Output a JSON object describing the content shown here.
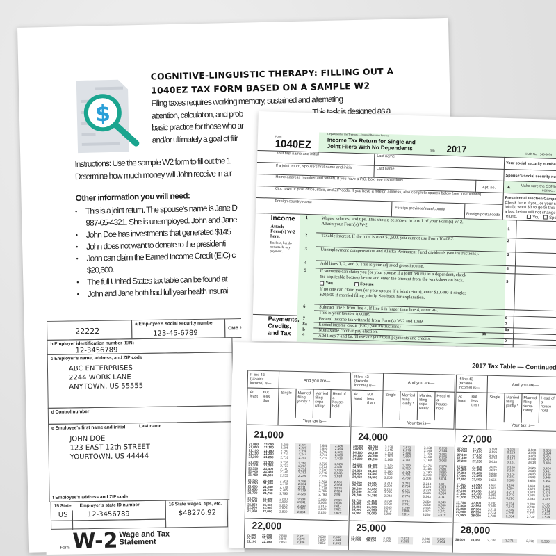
{
  "worksheet": {
    "title_line1": "COGNITIVE-LINGUISTIC THERAPY: FILLING OUT A",
    "title_line2": "1040EZ TAX FORM BASED ON A SAMPLE W2",
    "intro": [
      "Filing taxes requires working memory, sustained and alternating",
      "attention, calculation, and prob",
      "basic practice for those who ar",
      "and/or ultimately a goal of filir"
    ],
    "intro_tail": "This task is designed as a",
    "instructions": [
      "Instructions: Use the sample W2 form to fill out the 1",
      "Determine how much money will John receive in a r"
    ],
    "other_heading": "Other information you will need:",
    "bullets": [
      "This is a joint return. The spouse’s name is Jane D",
      "987-65-4321. She is unemployed. John and Jane",
      "John Doe has investments that generated $145",
      "John does not want to donate to the presidenti",
      "John can claim the Earned Income Credit (EIC) c",
      "$20,600.",
      "The full United States tax table can be found at",
      "John and Jane both had full year health insurai"
    ],
    "icon": "document-magnifier-dollar-icon",
    "icon_colors": {
      "teal": "#1aa58f",
      "blue": "#2a9fd8",
      "paper": "#dde1e6"
    }
  },
  "w2": {
    "code": "22222",
    "ssn_label": "a Employee’s social security number",
    "ssn": "123-45-6789",
    "omb": "OMB No.",
    "ein_label": "b Employer identification number (EIN)",
    "ein": "12-3456789",
    "employer_label": "c Employer’s name, address, and ZIP code",
    "employer": [
      "ABC ENTERPRISES",
      "2244 WORK LANE",
      "ANYTOWN, US  55555"
    ],
    "control_label": "d Control number",
    "employee_label": "e Employee’s first name and initial",
    "last_name_label": "Last name",
    "employee": [
      "JOHN DOE",
      "123 EAST 12th STREET",
      "YOURTOWN, US 44444"
    ],
    "address_label": "f Employee’s address and ZIP code",
    "state_label": "15 State",
    "state_id_label": "Employer’s state ID number",
    "state_wages_label": "16 State wages, tips, etc.",
    "state": "US",
    "state_id": "12-3456789",
    "state_wages": "$48276.92",
    "form_word": "Form",
    "form_name": "W-2",
    "form_title": [
      "Wage and Tax",
      "Statement"
    ]
  },
  "f1040ez": {
    "form_word": "Form",
    "form_name": "1040EZ",
    "dept": "Department of the Treasury—Internal Revenue Service",
    "title1": "Income Tax Return for Single and",
    "title2": "Joint Filers With No Dependents",
    "code": "(99)",
    "year": "2017",
    "omb": "OMB No. 1545-0074",
    "first_name": "Your first name and initial",
    "last_name": "Last name",
    "spouse_first": "If a joint return, spouse’s first name and initial",
    "spouse_last": "Last name",
    "address": "Home address (number and street). If you have a P.O. box, see instructions.",
    "apt": "Apt. no.",
    "city": "City, town or post office, state, and ZIP code. If you have a foreign address, also complete spaces below (see instructions).",
    "foreign_country": "Foreign country name",
    "foreign_province": "Foreign province/state/county",
    "foreign_postal": "Foreign postal code",
    "ssn": "Your social security number",
    "spouse_ssn": "Spouse’s social security number",
    "ssn_note": "Make sure the SSN(s) above are correct.",
    "pec_title": "Presidential Election Campaign",
    "pec_text": [
      "Check here if you, or your spouse if filing",
      "jointly, want $3 to go to this fund. Checking",
      "a box below will not change your tax or",
      "refund."
    ],
    "you": "You",
    "spouse": "Spouse",
    "income_heading": "Income",
    "attach": [
      "Attach",
      "Form(s) W-2",
      "here."
    ],
    "enclose": [
      "Enclose, but do",
      "not attach, any",
      "payment."
    ],
    "payments_heading": [
      "Payments,",
      "Credits,",
      "and Tax"
    ],
    "lines": [
      {
        "num": "1",
        "text": [
          "Wages, salaries, and tips. This should be shown in box 1 of your Form(s) W-2.",
          "Attach your Form(s) W-2."
        ],
        "box": "1"
      },
      {
        "num": "2",
        "text": [
          "Taxable interest. If the total is over $1,500, you cannot use Form 1040EZ."
        ],
        "box": "2"
      },
      {
        "num": "3",
        "text": [
          "Unemployment compensation and Alaska Permanent Fund dividends (see instructions)."
        ],
        "box": "3"
      },
      {
        "num": "4",
        "text": [
          "Add lines 1, 2, and 3. This is your adjusted gross income."
        ],
        "box": "4"
      },
      {
        "num": "5",
        "text": [
          "If someone can claim you (or your spouse if a joint return) as a dependent, check",
          "the applicable box(es) below and enter the amount from the worksheet on back."
        ],
        "box": "5"
      },
      {
        "num": "6",
        "text": [
          "Subtract line 5 from line 4. If line 5 is larger than line 4, enter -0-.",
          "This is your taxable income."
        ],
        "box": "6"
      },
      {
        "num": "7",
        "text": [
          "Federal income tax withheld from Form(s) W-2 and 1099."
        ],
        "box": "7"
      },
      {
        "num": "8a",
        "text": [
          "Earned income credit (EIC) (see instructions)"
        ],
        "box": "8a"
      },
      {
        "num": "b",
        "text": [
          "Nontaxable combat pay election."
        ],
        "box": "8b"
      },
      {
        "num": "9",
        "text": [
          "Add lines 7 and 8a. These are your total payments and credits."
        ],
        "box": "9"
      }
    ],
    "line5_no_one": [
      "If no one can claim you (or your spouse if a joint return), enter $10,400 if single;",
      "$20,800 if married filing jointly. See back for explanation."
    ],
    "green": "#dff5e0"
  },
  "tax_table": {
    "title": "2017 Tax Table — Continued",
    "header": {
      "if_line": [
        "If line 43",
        "(taxable",
        "income) is—"
      ],
      "and_you_are": "And you are—",
      "at_least": "At least",
      "but_less": [
        "But",
        "less",
        "than"
      ],
      "single": "Single",
      "mfj": [
        "Married",
        "filing",
        "jointly *"
      ],
      "mfs": [
        "Married",
        "filing",
        "sepa-",
        "rately"
      ],
      "hoh": [
        "Head of",
        "a",
        "house-",
        "hold"
      ],
      "your_tax": "Your tax is—"
    },
    "columns": [
      {
        "blocks": [
          {
            "heading": "21,000",
            "rows": [
              [
                "21,000",
                "21,050",
                "2,688",
                "2,221",
                "2,688",
                "2,486"
              ],
              [
                "21,050",
                "21,100",
                "2,695",
                "2,229",
                "2,695",
                "2,494"
              ],
              [
                "21,100",
                "21,150",
                "2,703",
                "2,236",
                "2,703",
                "2,501"
              ],
              [
                "21,150",
                "21,200",
                "2,710",
                "2,244",
                "2,710",
                "2,509"
              ],
              [
                "21,200",
                "21,250",
                "2,718",
                "2,251",
                "2,718",
                "2,516"
              ],
              [
                "21,250",
                "21,300",
                "2,725",
                "2,259",
                "2,725",
                "2,524"
              ],
              [
                "21,300",
                "21,350",
                "2,733",
                "2,266",
                "2,733",
                "2,531"
              ],
              [
                "21,350",
                "21,400",
                "2,740",
                "2,274",
                "2,740",
                "2,539"
              ],
              [
                "21,400",
                "21,450",
                "2,748",
                "2,281",
                "2,748",
                "2,546"
              ],
              [
                "21,450",
                "21,500",
                "2,755",
                "2,289",
                "2,755",
                "2,554"
              ],
              [
                "21,500",
                "21,550",
                "2,763",
                "2,296",
                "2,763",
                "2,561"
              ],
              [
                "21,550",
                "21,600",
                "2,770",
                "2,304",
                "2,770",
                "2,569"
              ],
              [
                "21,600",
                "21,650",
                "2,778",
                "2,311",
                "2,778",
                "2,576"
              ],
              [
                "21,650",
                "21,700",
                "2,785",
                "2,319",
                "2,785",
                "2,584"
              ],
              [
                "21,700",
                "21,750",
                "2,793",
                "2,326",
                "2,793",
                "2,591"
              ],
              [
                "21,750",
                "21,800",
                "2,800",
                "2,334",
                "2,800",
                "2,599"
              ],
              [
                "21,800",
                "21,850",
                "2,808",
                "2,341",
                "2,808",
                "2,606"
              ],
              [
                "21,850",
                "21,900",
                "2,815",
                "2,349",
                "2,815",
                "2,614"
              ],
              [
                "21,900",
                "21,950",
                "2,823",
                "2,356",
                "2,823",
                "2,621"
              ],
              [
                "21,950",
                "22,000",
                "2,830",
                "2,364",
                "2,830",
                "2,629"
              ]
            ]
          },
          {
            "heading": "22,000",
            "rows": [
              [
                "22,000",
                "22,050",
                "2,838",
                "2,371",
                "2,838",
                "2,636"
              ],
              [
                "22,050",
                "22,100",
                "2,845",
                "2,379",
                "2,845",
                "2,644"
              ],
              [
                "22,100",
                "22,150",
                "2,853",
                "2,386",
                "2,853",
                "2,651"
              ]
            ]
          }
        ]
      },
      {
        "blocks": [
          {
            "heading": "24,000",
            "rows": [
              [
                "24,000",
                "24,050",
                "3,138",
                "2,671",
                "3,138",
                "2,936"
              ],
              [
                "24,050",
                "24,100",
                "3,145",
                "2,679",
                "3,145",
                "2,944"
              ],
              [
                "24,100",
                "24,150",
                "3,153",
                "2,686",
                "3,153",
                "2,951"
              ],
              [
                "24,150",
                "24,200",
                "3,160",
                "2,694",
                "3,160",
                "2,959"
              ],
              [
                "24,200",
                "24,250",
                "3,168",
                "2,701",
                "3,168",
                "2,966"
              ],
              [
                "24,250",
                "24,300",
                "3,175",
                "2,709",
                "3,175",
                "2,974"
              ],
              [
                "24,300",
                "24,350",
                "3,183",
                "2,716",
                "3,183",
                "2,981"
              ],
              [
                "24,350",
                "24,400",
                "3,190",
                "2,724",
                "3,190",
                "2,989"
              ],
              [
                "24,400",
                "24,450",
                "3,198",
                "2,731",
                "3,198",
                "2,996"
              ],
              [
                "24,450",
                "24,500",
                "3,205",
                "2,739",
                "3,205",
                "3,004"
              ],
              [
                "24,500",
                "24,550",
                "3,213",
                "2,746",
                "3,213",
                "3,011"
              ],
              [
                "24,550",
                "24,600",
                "3,220",
                "2,754",
                "3,220",
                "3,019"
              ],
              [
                "24,600",
                "24,650",
                "3,228",
                "2,761",
                "3,228",
                "3,026"
              ],
              [
                "24,650",
                "24,700",
                "3,235",
                "2,769",
                "3,235",
                "3,034"
              ],
              [
                "24,700",
                "24,750",
                "3,243",
                "2,776",
                "3,243",
                "3,041"
              ],
              [
                "24,750",
                "24,800",
                "3,250",
                "2,784",
                "3,250",
                "3,049"
              ],
              [
                "24,800",
                "24,850",
                "3,258",
                "2,791",
                "3,258",
                "3,056"
              ],
              [
                "24,850",
                "24,900",
                "3,265",
                "2,799",
                "3,265",
                "3,064"
              ],
              [
                "24,900",
                "24,950",
                "3,273",
                "2,806",
                "3,273",
                "3,071"
              ],
              [
                "24,950",
                "25,000",
                "3,280",
                "2,814",
                "3,280",
                "3,079"
              ]
            ]
          },
          {
            "heading": "25,000",
            "rows": [
              [
                "25,000",
                "25,050",
                "3,288",
                "2,821",
                "3,288",
                "3,086"
              ],
              [
                "25,050",
                "25,100",
                "3,295",
                "2,829",
                "3,295",
                "3,094"
              ]
            ]
          }
        ]
      },
      {
        "blocks": [
          {
            "heading": "27,000",
            "rows": [
              [
                "27,000",
                "27,050",
                "3,588",
                "3,121",
                "3,588",
                "3,386"
              ],
              [
                "27,050",
                "27,100",
                "3,595",
                "3,129",
                "3,595",
                "3,394"
              ],
              [
                "27,100",
                "27,150",
                "3,603",
                "3,136",
                "3,603",
                "3,401"
              ],
              [
                "27,150",
                "27,200",
                "3,610",
                "3,144",
                "3,610",
                "3,409"
              ],
              [
                "27,200",
                "27,250",
                "3,618",
                "3,151",
                "3,618",
                "3,416"
              ],
              [
                "27,250",
                "27,300",
                "3,625",
                "3,159",
                "3,625",
                "3,424"
              ],
              [
                "27,300",
                "27,350",
                "3,633",
                "3,166",
                "3,633",
                "3,431"
              ],
              [
                "27,350",
                "27,400",
                "3,640",
                "3,174",
                "3,640",
                "3,439"
              ],
              [
                "27,400",
                "27,450",
                "3,648",
                "3,181",
                "3,648",
                "3,446"
              ],
              [
                "27,450",
                "27,500",
                "3,655",
                "3,189",
                "3,655",
                "3,454"
              ],
              [
                "27,500",
                "27,550",
                "3,663",
                "3,196",
                "3,663",
                "3,461"
              ],
              [
                "27,550",
                "27,600",
                "3,670",
                "3,204",
                "3,670",
                "3,469"
              ],
              [
                "27,600",
                "27,650",
                "3,678",
                "3,211",
                "3,678",
                "3,476"
              ],
              [
                "27,650",
                "27,700",
                "3,685",
                "3,219",
                "3,685",
                "3,484"
              ],
              [
                "27,700",
                "27,750",
                "3,693",
                "3,226",
                "3,693",
                "3,491"
              ],
              [
                "27,750",
                "27,800",
                "3,700",
                "3,234",
                "3,700",
                "3,499"
              ],
              [
                "27,800",
                "27,850",
                "3,708",
                "3,241",
                "3,708",
                "3,506"
              ],
              [
                "27,850",
                "27,900",
                "3,715",
                "3,249",
                "3,715",
                "3,514"
              ],
              [
                "27,900",
                "27,950",
                "3,723",
                "3,256",
                "3,723",
                "3,521"
              ],
              [
                "27,950",
                "28,000",
                "3,730",
                "3,264",
                "3,730",
                "3,529"
              ]
            ]
          },
          {
            "heading": "28,000",
            "rows": [
              [
                "28,000",
                "28,050",
                "3,738",
                "3,271",
                "3,738",
                "3,536"
              ]
            ]
          }
        ]
      }
    ]
  }
}
